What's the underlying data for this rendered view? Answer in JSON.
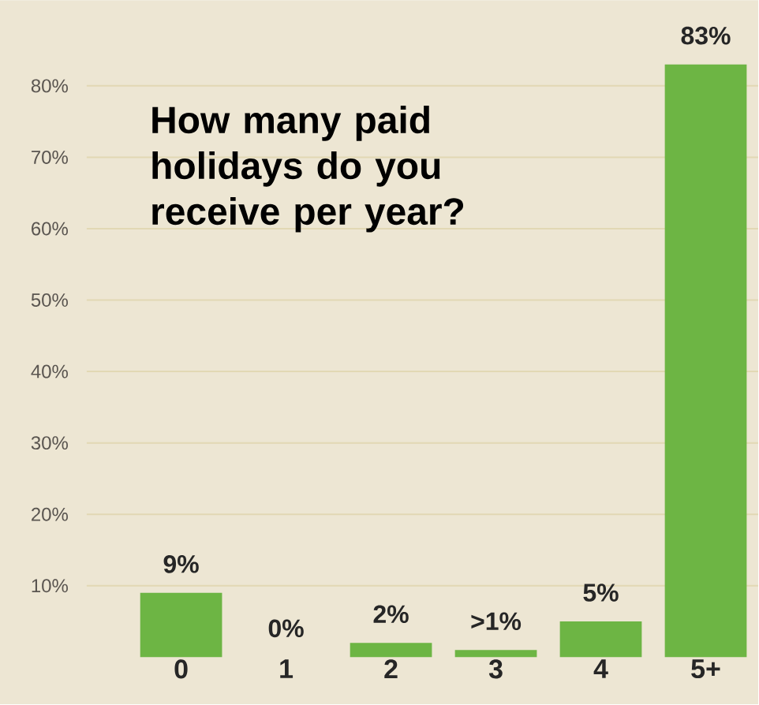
{
  "chart_data": {
    "type": "bar",
    "title": "How many paid holidays do you receive per year?",
    "categories": [
      "0",
      "1",
      "2",
      "3",
      "4",
      "5+"
    ],
    "values": [
      9,
      0,
      2,
      1,
      5,
      83
    ],
    "value_labels": [
      "9%",
      "0%",
      "2%",
      ">1%",
      "5%",
      "83%"
    ],
    "color": "#6db544",
    "ylim": [
      0,
      92
    ],
    "yticks": [
      {
        "value": 10,
        "label": "10%"
      },
      {
        "value": 20,
        "label": "20%"
      },
      {
        "value": 30,
        "label": "30%"
      },
      {
        "value": 40,
        "label": "40%"
      },
      {
        "value": 50,
        "label": "50%"
      },
      {
        "value": 60,
        "label": "60%"
      },
      {
        "value": 70,
        "label": "70%"
      },
      {
        "value": 80,
        "label": "80%"
      }
    ],
    "grid": "y"
  }
}
